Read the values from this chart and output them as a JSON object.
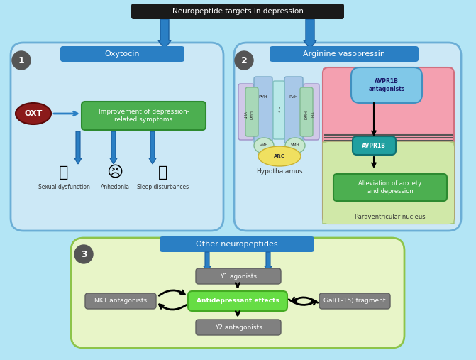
{
  "bg_color": "#b3e5f5",
  "title_text": "Neuropeptide targets in depression",
  "title_bg": "#1a1a1a",
  "title_fg": "#ffffff",
  "panel1_label": "Oxytocin",
  "panel2_label": "Arginine vasopressin",
  "panel3_label": "Other neuropeptides",
  "panel_bg": "#cce8f5",
  "panel_border": "#6baed6",
  "panel3_bg": "#e8f5c8",
  "panel3_border": "#7ab648",
  "green_box_color": "#4caf50",
  "green_box_text": "Improvement of depression-\nrelated symptoms",
  "green_box2_color": "#4caf50",
  "green_box2_text": "Alleviation of anxiety\nand depression",
  "green_box3_color": "#66dd44",
  "green_box3_text": "Antidepressant effects",
  "gray_box_color": "#808080",
  "oxt_color": "#8b1a1a",
  "circle_color": "#555555",
  "blue_header_color": "#4472c4",
  "blue_arrow_color": "#1a6fbd",
  "labels": {
    "sexual_dysfunction": "Sexual dysfunction",
    "anhedonia": "Anhedonia",
    "sleep_disturbances": "Sleep disturbances",
    "hypothalamus": "Hypothalamus",
    "paraventricular": "Paraventricular nucleus",
    "avprb_antagonists": "AVPR1B\nantagonists",
    "avpr1b": "AVPR1B",
    "y1_agonists": "Y1 agonists",
    "y2_antagonists": "Y2 antagonists",
    "nk1_antagonists": "NK1 antagonists",
    "gal_fragment": "Gal(1-15) fragment",
    "oxt": "OXT",
    "pvh1": "PVH",
    "pvh2": "PVH",
    "lha1": "LHA",
    "lha2": "LHA",
    "dmh1": "DMH",
    "dmh2": "DMH",
    "vmh1": "VMH",
    "vmh2": "VMH",
    "arc": "ARC",
    "3v": "3\nv"
  }
}
